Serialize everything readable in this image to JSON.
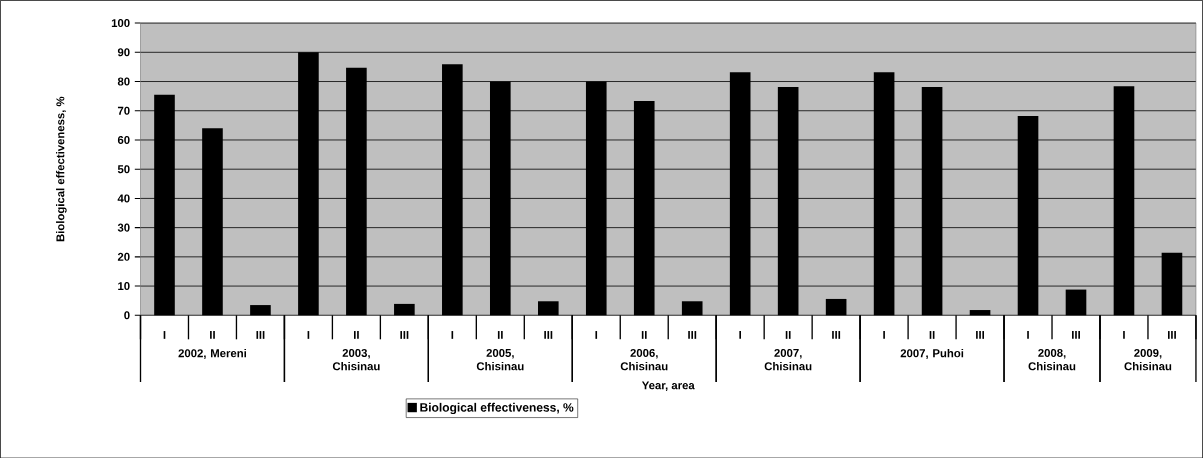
{
  "chart_data": {
    "type": "bar",
    "xlabel": "Year, area",
    "ylabel": "Biological effectiveness, %",
    "categories": [
      "I",
      "II",
      "III",
      "I",
      "II",
      "III",
      "I",
      "II",
      "III",
      "I",
      "II",
      "III",
      "I",
      "II",
      "III",
      "I",
      "II",
      "III",
      "I",
      "III",
      "I",
      "III"
    ],
    "series": [
      {
        "name": "Biological effectiveness, %",
        "color": "#000000",
        "values": [
          75.5,
          64,
          3.5,
          90,
          84.7,
          3.9,
          85.9,
          80,
          4.8,
          80,
          73.3,
          4.8,
          83.2,
          78.1,
          5.6,
          83.2,
          78.1,
          1.8,
          68.2,
          8.8,
          78.4,
          21.4
        ]
      }
    ],
    "ylim": [
      0,
      100
    ],
    "yticks": [
      0,
      10,
      20,
      30,
      40,
      50,
      60,
      70,
      80,
      90,
      100
    ],
    "grid": "y",
    "legend": "bottom",
    "annotations": [
      "2002, Mereni",
      "2003, Chisinau",
      "2005, Chisinau",
      "2006, Chisinau",
      "2007, Chisinau",
      "2007, Puhoi",
      "2008, Chisinau",
      "2009, Chisinau"
    ]
  }
}
